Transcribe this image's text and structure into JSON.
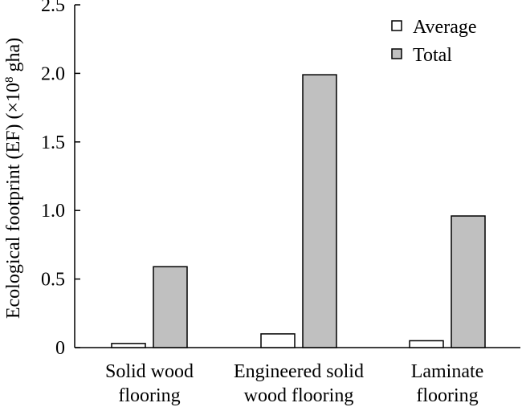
{
  "chart_data": {
    "type": "bar",
    "categories": [
      [
        "Solid wood",
        "flooring"
      ],
      [
        "Engineered solid",
        "wood flooring"
      ],
      [
        "Laminate",
        "flooring"
      ]
    ],
    "series": [
      {
        "name": "Average",
        "values": [
          0.03,
          0.1,
          0.05
        ],
        "color": "#ffffff"
      },
      {
        "name": "Total",
        "values": [
          0.59,
          1.99,
          0.96
        ],
        "color": "#c0c0c0"
      }
    ],
    "ylabel_main": "Ecological footprint (EF) (×10",
    "ylabel_sup": "8",
    "ylabel_unit": " gha)",
    "ylim": [
      0,
      2.5
    ],
    "yticks": [
      {
        "value": 0,
        "label": "0"
      },
      {
        "value": 0.5,
        "label": "0.5"
      },
      {
        "value": 1.0,
        "label": "1.0"
      },
      {
        "value": 1.5,
        "label": "1.5"
      },
      {
        "value": 2.0,
        "label": "2.0"
      },
      {
        "value": 2.5,
        "label": "2.5"
      }
    ],
    "legend_position": "top-right",
    "grid": false
  }
}
